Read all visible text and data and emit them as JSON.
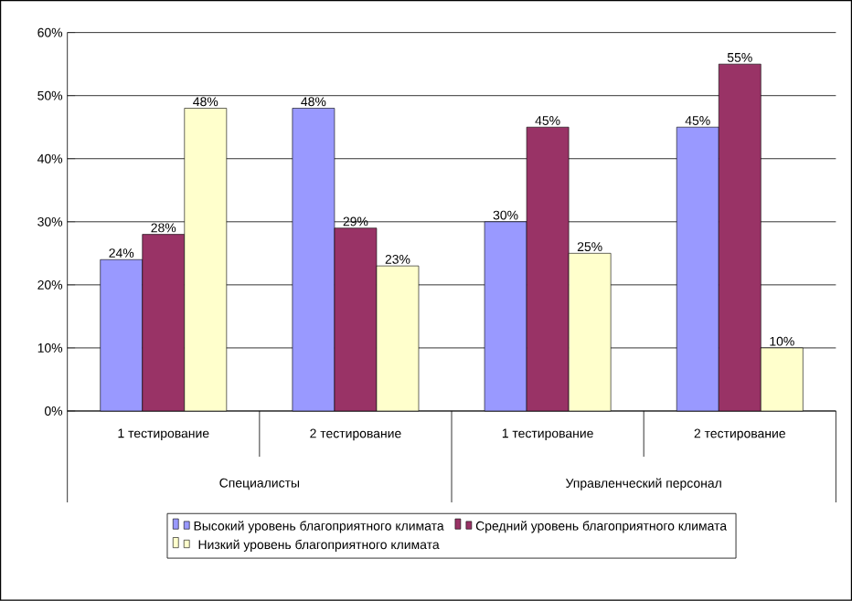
{
  "chart_data": {
    "type": "bar",
    "categories": [
      "1 тестирование",
      "2 тестирование",
      "1 тестирование",
      "2 тестирование"
    ],
    "annotations": [
      "Специалисты",
      "Управленческий персонал"
    ],
    "series": [
      {
        "name": "Высокий уровень благоприятного климата",
        "color": "#9999ff",
        "values": [
          24,
          48,
          30,
          45
        ],
        "value_labels": [
          "24%",
          "48%",
          "30%",
          "45%"
        ]
      },
      {
        "name": "Средний уровень благоприятного климата",
        "color": "#993366",
        "values": [
          28,
          29,
          45,
          55
        ],
        "value_labels": [
          "28%",
          "29%",
          "45%",
          "55%"
        ]
      },
      {
        "name": "Низкий уровень благоприятного климата",
        "color": "#ffffcc",
        "values": [
          48,
          23,
          25,
          10
        ],
        "value_labels": [
          "48%",
          "23%",
          "25%",
          "10%"
        ]
      }
    ],
    "ylim": [
      0,
      60
    ],
    "yticks": [
      {
        "value": 0,
        "label": "0%"
      },
      {
        "value": 10,
        "label": "10%"
      },
      {
        "value": 20,
        "label": "20%"
      },
      {
        "value": 30,
        "label": "30%"
      },
      {
        "value": 40,
        "label": "40%"
      },
      {
        "value": 50,
        "label": "50%"
      },
      {
        "value": 60,
        "label": "60%"
      }
    ],
    "grid": "y",
    "legend": "bottom"
  }
}
